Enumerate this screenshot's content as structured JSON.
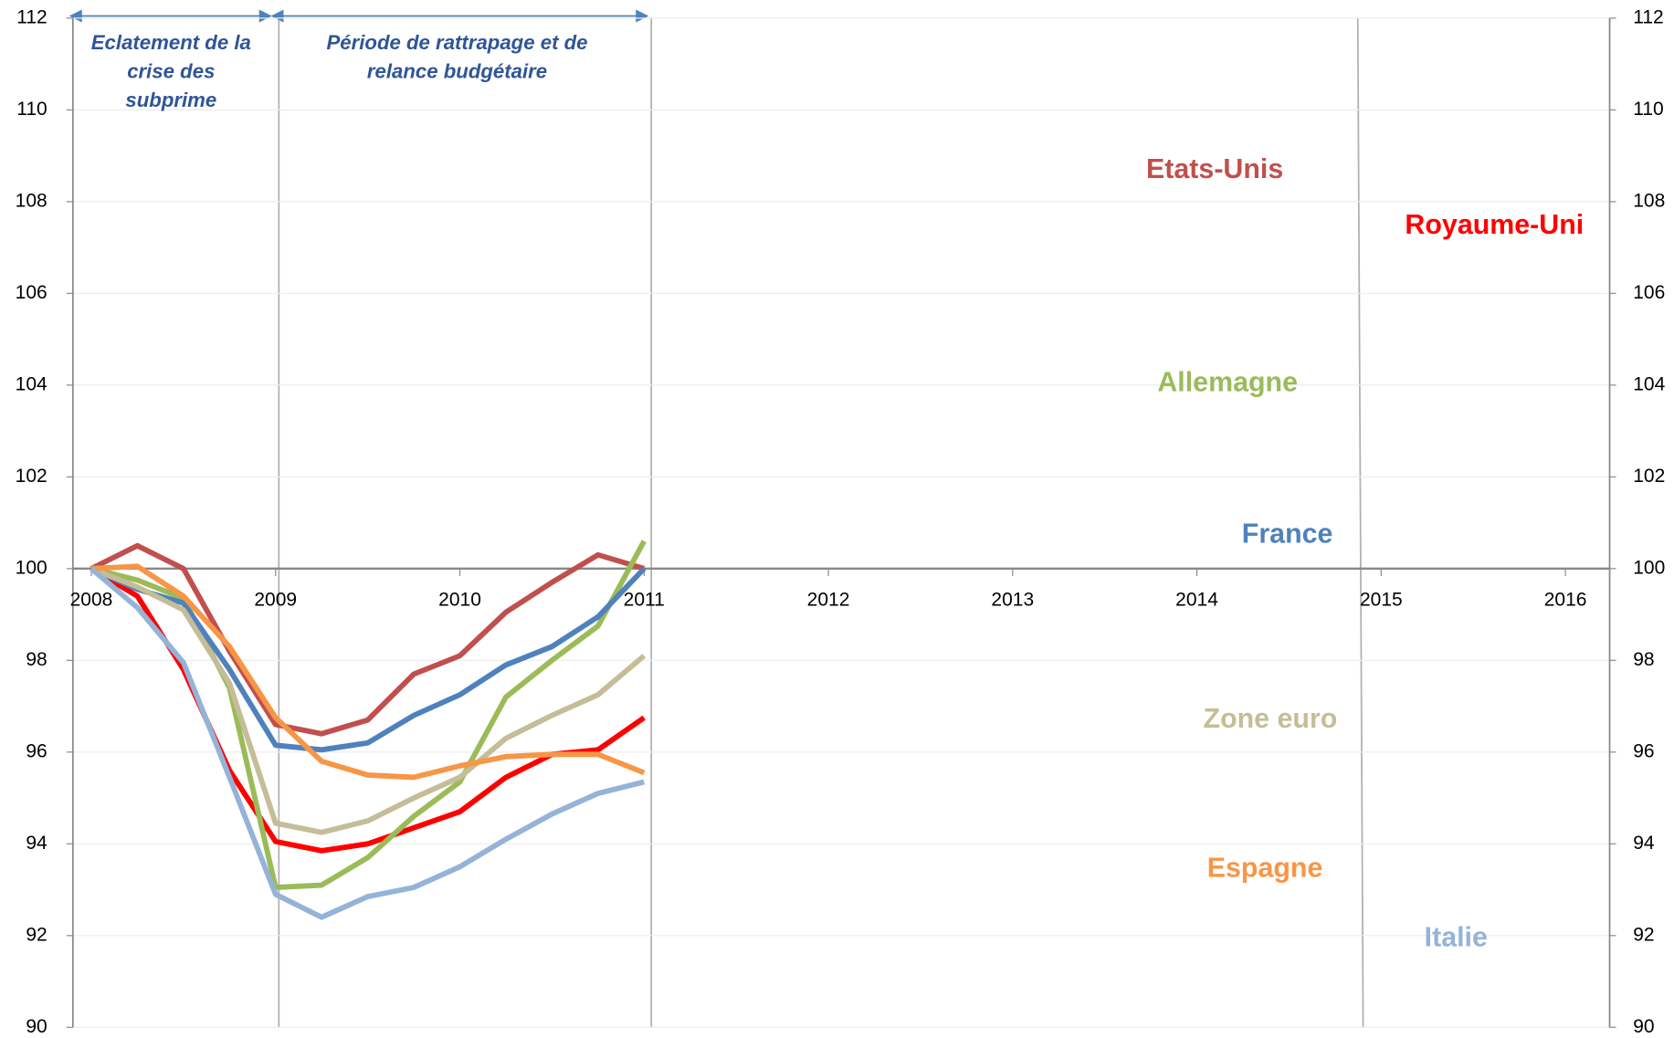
{
  "chart_data": {
    "type": "line",
    "x": [
      2008,
      2008.25,
      2008.5,
      2008.75,
      2009,
      2009.25,
      2009.5,
      2009.75,
      2010,
      2010.25,
      2010.5,
      2010.75,
      2011
    ],
    "series": [
      {
        "name": "Etats-Unis",
        "color": "#c0504d",
        "values": [
          100,
          100.5,
          100.0,
          98.2,
          96.6,
          96.4,
          96.7,
          97.7,
          98.1,
          99.05,
          99.7,
          100.3,
          100.0
        ]
      },
      {
        "name": "Royaume-Uni",
        "color": "#ff0000",
        "values": [
          100,
          99.4,
          97.8,
          95.6,
          94.05,
          93.85,
          94.0,
          94.35,
          94.7,
          95.45,
          95.95,
          96.05,
          96.75
        ]
      },
      {
        "name": "Allemagne",
        "color": "#9bbb59",
        "values": [
          100,
          99.75,
          99.35,
          97.4,
          93.05,
          93.1,
          93.7,
          94.6,
          95.35,
          97.2,
          98.0,
          98.75,
          100.6
        ]
      },
      {
        "name": "France",
        "color": "#4f81bd",
        "values": [
          100,
          99.55,
          99.25,
          97.8,
          96.15,
          96.05,
          96.2,
          96.8,
          97.25,
          97.9,
          98.3,
          98.95,
          100.0
        ]
      },
      {
        "name": "Zone euro",
        "color": "#c4bd97",
        "values": [
          100,
          99.6,
          99.1,
          97.5,
          94.45,
          94.25,
          94.5,
          95.0,
          95.45,
          96.3,
          96.8,
          97.25,
          98.1
        ]
      },
      {
        "name": "Espagne",
        "color": "#f79646",
        "values": [
          100,
          100.05,
          99.4,
          98.3,
          96.75,
          95.8,
          95.5,
          95.45,
          95.7,
          95.9,
          95.95,
          95.95,
          95.55
        ]
      },
      {
        "name": "Italie",
        "color": "#95b3d7",
        "values": [
          100,
          99.15,
          97.95,
          95.45,
          92.9,
          92.4,
          92.85,
          93.05,
          93.5,
          94.1,
          94.65,
          95.1,
          95.35
        ]
      }
    ],
    "xlim": [
      2007.9,
      2016.24
    ],
    "xticks": [
      2008,
      2009,
      2010,
      2011,
      2012,
      2013,
      2014,
      2015,
      2016
    ],
    "ylim": [
      90,
      112
    ],
    "yticks": [
      90,
      92,
      94,
      96,
      98,
      100,
      102,
      104,
      106,
      108,
      110,
      112
    ],
    "y2lim": [
      90,
      112
    ],
    "y2ticks": [
      90,
      92,
      94,
      96,
      98,
      100,
      102,
      104,
      106,
      108,
      110,
      112
    ],
    "grid": true,
    "annotations": [
      {
        "lines": [
          "Eclatement de la",
          "crise des",
          "subprime"
        ]
      },
      {
        "lines": [
          "Période de rattrapage  et de",
          "relance budgétaire"
        ]
      }
    ]
  }
}
